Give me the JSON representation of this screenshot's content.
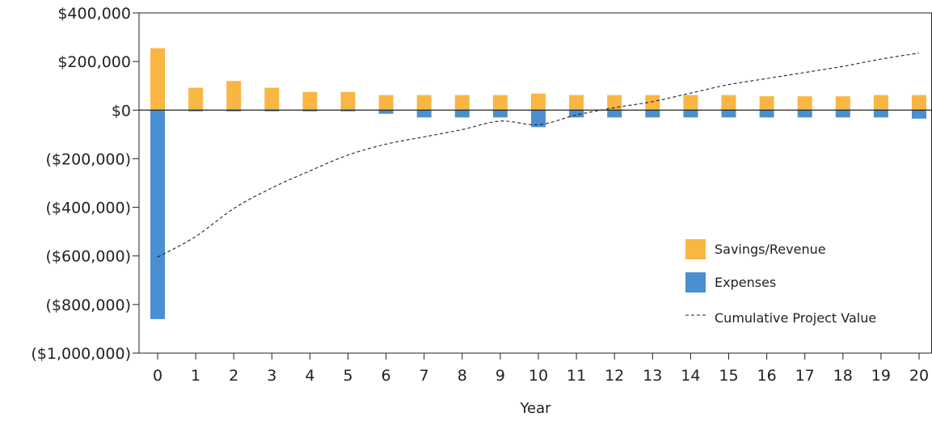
{
  "chart_data": {
    "type": "bar",
    "xlabel": "Year",
    "ylabel": "",
    "ylim": [
      -1000000,
      400000
    ],
    "y_ticks": [
      400000,
      200000,
      0,
      -200000,
      -400000,
      -600000,
      -800000,
      -1000000
    ],
    "y_tick_labels": [
      "$400,000",
      "$200,000",
      "$0",
      "($200,000)",
      "($400,000)",
      "($600,000)",
      "($800,000)",
      "($1,000,000)"
    ],
    "categories": [
      "0",
      "1",
      "2",
      "3",
      "4",
      "5",
      "6",
      "7",
      "8",
      "9",
      "10",
      "11",
      "12",
      "13",
      "14",
      "15",
      "16",
      "17",
      "18",
      "19",
      "20"
    ],
    "series": [
      {
        "name": "Savings/Revenue",
        "kind": "bar",
        "color": "#F9B643",
        "values": [
          255000,
          92000,
          120000,
          92000,
          75000,
          75000,
          62000,
          62000,
          62000,
          62000,
          68000,
          62000,
          62000,
          62000,
          62000,
          62000,
          57000,
          57000,
          57000,
          62000,
          62000
        ]
      },
      {
        "name": "Expenses",
        "kind": "bar",
        "color": "#4A8FD1",
        "values": [
          -860000,
          -5000,
          -5000,
          -5000,
          -5000,
          -5000,
          -15000,
          -30000,
          -30000,
          -30000,
          -70000,
          -30000,
          -30000,
          -30000,
          -30000,
          -30000,
          -30000,
          -30000,
          -30000,
          -30000,
          -35000
        ]
      },
      {
        "name": "Cumulative Project Value",
        "kind": "line",
        "color": "#222222",
        "dash": "dashed",
        "values": [
          -605000,
          -520000,
          -405000,
          -320000,
          -250000,
          -185000,
          -140000,
          -110000,
          -80000,
          -45000,
          -60000,
          -20000,
          10000,
          35000,
          70000,
          105000,
          130000,
          155000,
          180000,
          210000,
          235000
        ]
      }
    ],
    "legend_position": "bottom-right",
    "grid": false
  }
}
